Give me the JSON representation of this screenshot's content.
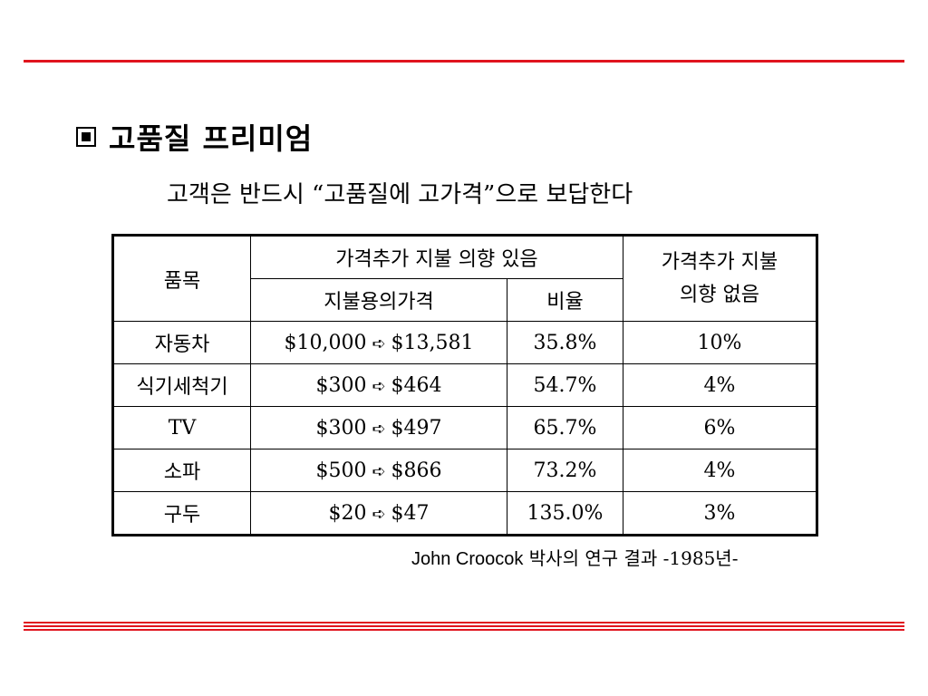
{
  "colors": {
    "accent": "#e0141e"
  },
  "title": "고품질 프리미엄",
  "subtitle": "고객은 반드시 “고품질에 고가격”으로 보답한다",
  "table": {
    "header": {
      "item": "품목",
      "willing": "가격추가 지불 의향 있음",
      "price": "지불용의가격",
      "ratio": "비율",
      "not_willing": "가격추가 지불\n의향 없음"
    },
    "arrow_icon": "➪",
    "rows": [
      {
        "item": "자동차",
        "from": "$10,000",
        "to": "$13,581",
        "ratio": "35.8%",
        "none": "10%"
      },
      {
        "item": "식기세척기",
        "from": "$300",
        "to": "$464",
        "ratio": "54.7%",
        "none": "4%"
      },
      {
        "item": "TV",
        "from": "$300",
        "to": "$497",
        "ratio": "65.7%",
        "none": "6%"
      },
      {
        "item": "소파",
        "from": "$500",
        "to": "$866",
        "ratio": "73.2%",
        "none": "4%"
      },
      {
        "item": "구두",
        "from": "$20",
        "to": "$47",
        "ratio": "135.0%",
        "none": "3%"
      }
    ]
  },
  "footnote": {
    "name": "John Croocok",
    "rest": " 박사의 연구 결과 -1985년-"
  }
}
